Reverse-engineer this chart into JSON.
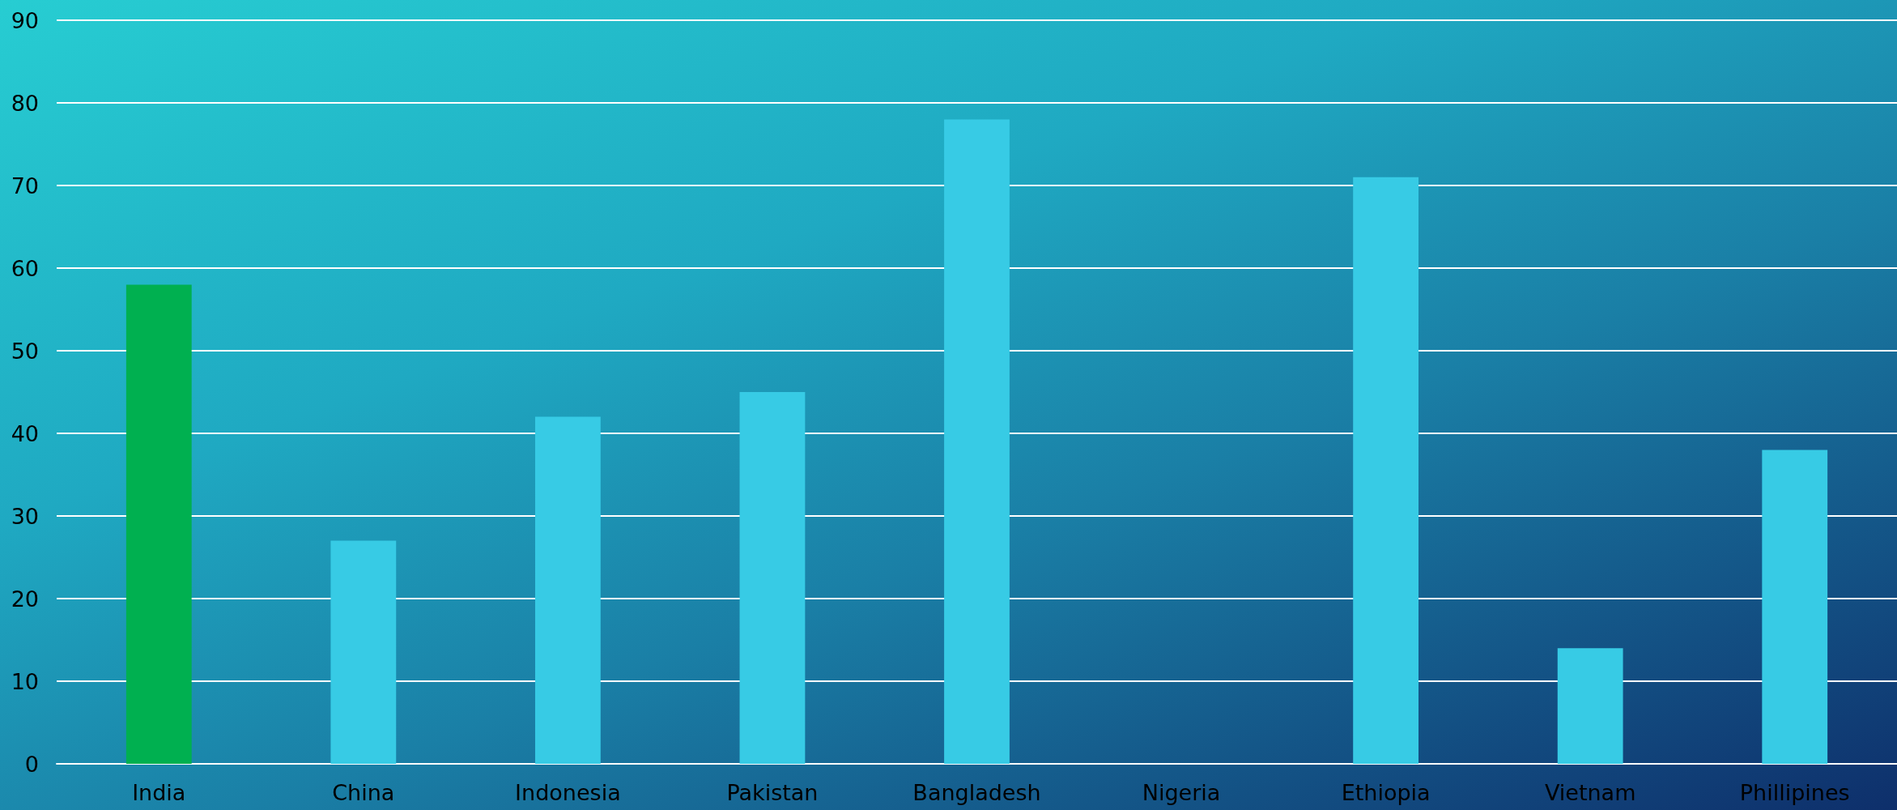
{
  "chart_data": {
    "type": "bar",
    "categories": [
      "India",
      "China",
      "Indonesia",
      "Pakistan",
      "Bangladesh",
      "Nigeria",
      "Ethiopia",
      "Vietnam",
      "Phillipines"
    ],
    "values": [
      58,
      27,
      42,
      45,
      78,
      null,
      71,
      14,
      38
    ],
    "colors": [
      "#00b050",
      "#37cbe5",
      "#37cbe5",
      "#37cbe5",
      "#37cbe5",
      "#37cbe5",
      "#37cbe5",
      "#37cbe5",
      "#37cbe5"
    ],
    "ylim": [
      0,
      90
    ],
    "yticks": [
      0,
      10,
      20,
      30,
      40,
      50,
      60,
      70,
      80,
      90
    ],
    "grid": "y"
  }
}
